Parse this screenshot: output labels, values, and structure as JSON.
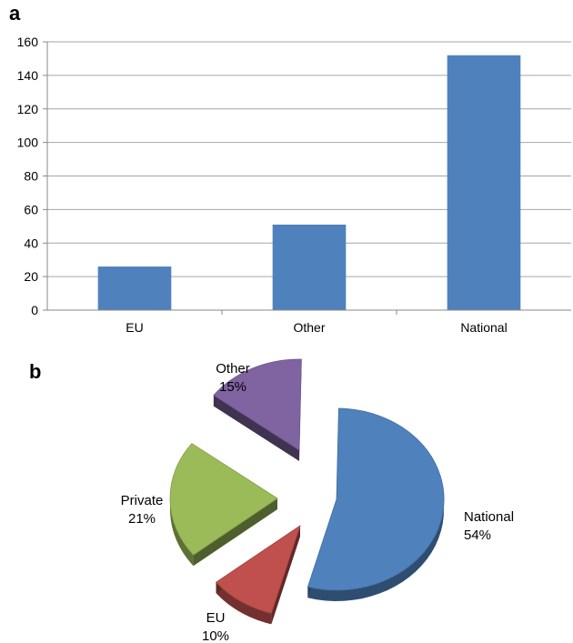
{
  "panels": {
    "a": "a",
    "b": "b"
  },
  "chart_data": [
    {
      "panel": "a",
      "type": "bar",
      "categories": [
        "EU",
        "Other",
        "National"
      ],
      "values": [
        26,
        51,
        152
      ],
      "ylim": [
        0,
        160
      ],
      "yticks": [
        0,
        20,
        40,
        60,
        80,
        100,
        120,
        140,
        160
      ],
      "grid": true,
      "colors": {
        "bar": "#4f81bd"
      }
    },
    {
      "panel": "b",
      "type": "pie",
      "slices": [
        {
          "label": "National",
          "value": 54,
          "pct": "54%",
          "color": "#4f81bd"
        },
        {
          "label": "EU",
          "value": 10,
          "pct": "10%",
          "color": "#c0504d"
        },
        {
          "label": "Private",
          "value": 21,
          "pct": "21%",
          "color": "#9bbb59"
        },
        {
          "label": "Other",
          "value": 15,
          "pct": "15%",
          "color": "#8064a2"
        }
      ],
      "style": "3d-exploded"
    }
  ]
}
